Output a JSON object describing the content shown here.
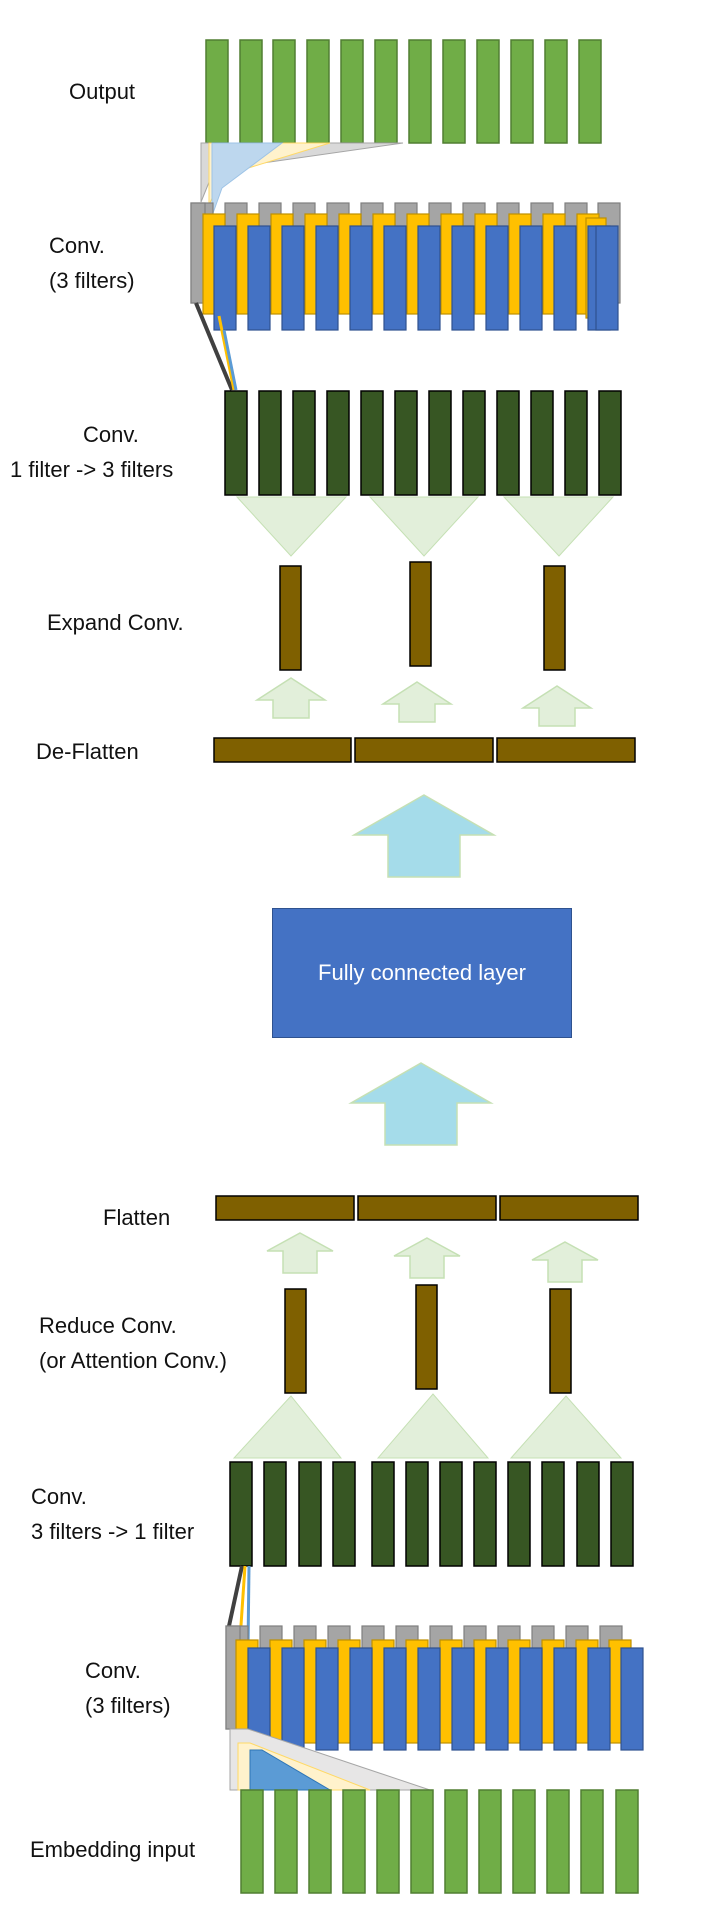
{
  "colors": {
    "green": "#70ad47",
    "green_border": "#507e32",
    "dark_green": "#375623",
    "brown": "#7f6000",
    "blue": "#4472c4",
    "yellow": "#ffc000",
    "gray": "#a5a5a5",
    "light_green": "#e2efda",
    "light_blue": "#a5dcea",
    "black": "#000000"
  },
  "labels": {
    "output": "Output",
    "conv_top": [
      "Conv.",
      "(3 filters)"
    ],
    "conv_1_to_3": [
      "Conv.",
      "1 filter -> 3 filters"
    ],
    "expand_conv": "Expand Conv.",
    "de_flatten": "De-Flatten",
    "fully_connected": "Fully connected layer",
    "flatten": "Flatten",
    "reduce_conv": [
      "Reduce Conv.",
      "(or Attention Conv.)"
    ],
    "conv_3_to_1": [
      "Conv.",
      "3 filters -> 1 filter"
    ],
    "conv_bottom": [
      "Conv.",
      "(3 filters)"
    ],
    "embedding_input": "Embedding input"
  }
}
